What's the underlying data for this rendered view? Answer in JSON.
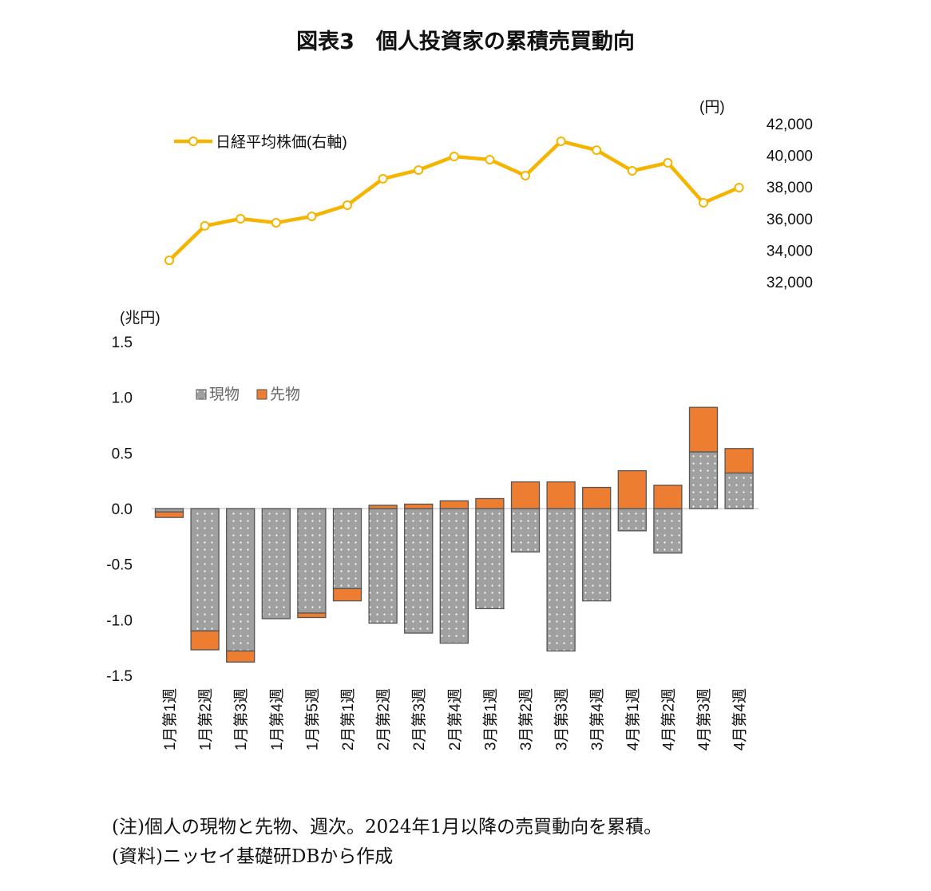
{
  "title": "図表3　個人投資家の累積売買動向",
  "chart_data": [
    {
      "type": "line",
      "series": [
        {
          "name": "日経平均株価(右軸)",
          "color": "#F5B400",
          "values": [
            33360,
            35540,
            35990,
            35740,
            36140,
            36850,
            38520,
            39070,
            39930,
            39730,
            38720,
            40890,
            40330,
            39020,
            39530,
            37000,
            37960
          ]
        }
      ],
      "ylabel": "(円)",
      "ylim": [
        32000,
        42000
      ],
      "yticks": [
        "32,000",
        "34,000",
        "36,000",
        "38,000",
        "40,000",
        "42,000"
      ],
      "ytick_values": [
        32000,
        34000,
        36000,
        38000,
        40000,
        42000
      ],
      "legend": "top-left"
    },
    {
      "type": "bar",
      "stacked": true,
      "categories": [
        "1月第1週",
        "1月第2週",
        "1月第3週",
        "1月第4週",
        "1月第5週",
        "2月第1週",
        "2月第2週",
        "2月第3週",
        "2月第4週",
        "3月第1週",
        "3月第2週",
        "3月第3週",
        "3月第4週",
        "4月第1週",
        "4月第2週",
        "4月第3週",
        "4月第4週"
      ],
      "series": [
        {
          "name": "現物",
          "color": "#A0A0A0",
          "values": [
            -0.03,
            -1.1,
            -1.28,
            -0.99,
            -0.94,
            -0.72,
            -1.03,
            -1.12,
            -1.21,
            -0.9,
            -0.39,
            -1.28,
            -0.83,
            -0.2,
            -0.4,
            0.51,
            0.32
          ]
        },
        {
          "name": "先物",
          "color": "#ED7D31",
          "values": [
            -0.05,
            -0.17,
            -0.1,
            0.0,
            -0.04,
            -0.11,
            0.03,
            0.04,
            0.07,
            0.09,
            0.24,
            0.24,
            0.19,
            0.34,
            0.21,
            0.4,
            0.22
          ]
        }
      ],
      "ylabel": "(兆円)",
      "ylim": [
        -1.5,
        1.5
      ],
      "yticks": [
        "-1.5",
        "-1.0",
        "-0.5",
        "0.0",
        "0.5",
        "1.0",
        "1.5"
      ],
      "ytick_values": [
        -1.5,
        -1.0,
        -0.5,
        0.0,
        0.5,
        1.0,
        1.5
      ],
      "legend": "top-left"
    }
  ],
  "notes": [
    "(注)個人の現物と先物、週次。2024年1月以降の売買動向を累積。",
    "(資料)ニッセイ基礎研DBから作成"
  ]
}
